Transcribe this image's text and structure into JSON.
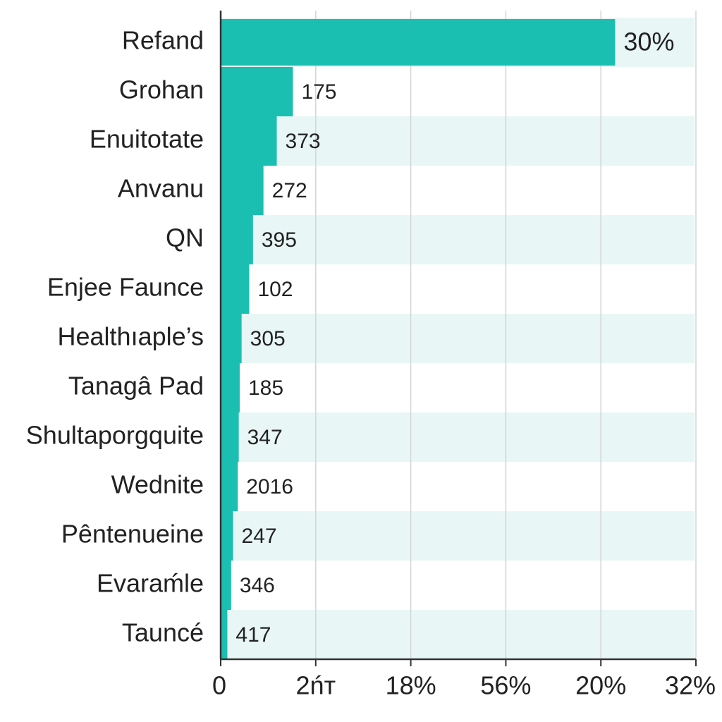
{
  "chart_data": {
    "type": "hbar",
    "categories": [
      "Refand",
      "Grohan",
      "Enuitotate",
      "Anvanu",
      "QN",
      "Enjee Faunce",
      "Healthıaple’s",
      "Tanagâ Pad",
      "Shultaporgquite",
      "Wednite",
      "Pêntenueine",
      "Evaraḿle",
      "Tauncé"
    ],
    "values": [
      4.15,
      0.76,
      0.59,
      0.45,
      0.34,
      0.3,
      0.22,
      0.2,
      0.19,
      0.18,
      0.13,
      0.11,
      0.07
    ],
    "bar_labels": [
      "30%",
      "175",
      "373",
      "272",
      "395",
      "102",
      "305",
      "185",
      "347",
      "2016",
      "247",
      "346",
      "417"
    ],
    "color": "#1bbfb1",
    "stripe_color": "#e8f7f5",
    "xlim": [
      0,
      5
    ],
    "xticks": [
      0,
      {
        "value": 1,
        "label": "2ńт"
      },
      {
        "value": 2,
        "label": "18%"
      },
      {
        "value": 3,
        "label": "56%"
      },
      {
        "value": 4,
        "label": "20%"
      },
      {
        "value": 5,
        "label": "32%"
      }
    ],
    "grid": true
  }
}
